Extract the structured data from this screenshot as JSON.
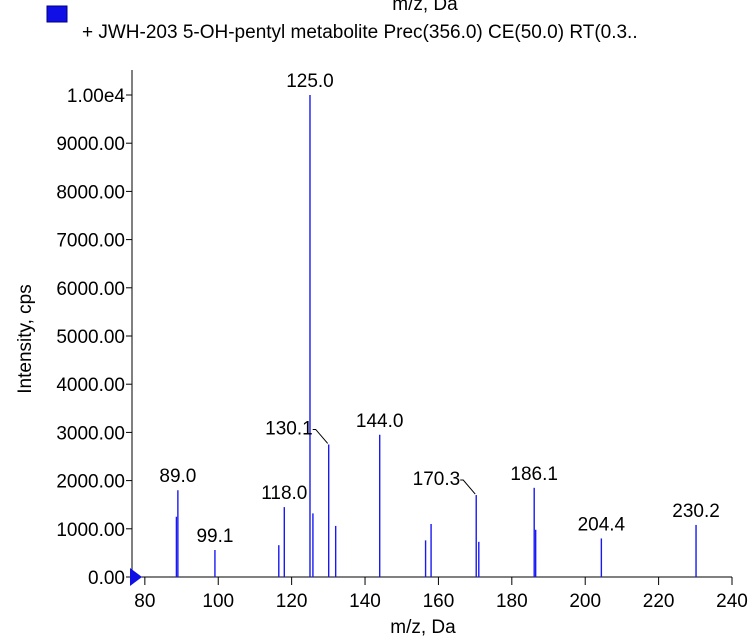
{
  "header": {
    "clipped_text": "m/z, Da"
  },
  "legend": {
    "label": "+ JWH-203 5-OH-pentyl metabolite Prec(356.0) CE(50.0) RT(0.3..",
    "swatch_color": "#1010e6"
  },
  "chart_data": {
    "type": "bar",
    "xlabel": "m/z, Da",
    "ylabel": "Intensity, cps",
    "xlim": [
      76.5,
      240
    ],
    "ylim": [
      0,
      10000
    ],
    "x_ticks": [
      80,
      100,
      120,
      140,
      160,
      180,
      200,
      220,
      240
    ],
    "x_tick_labels": [
      "80",
      "100",
      "120",
      "140",
      "160",
      "180",
      "200",
      "220",
      "240"
    ],
    "y_ticks": [
      0,
      1000,
      2000,
      3000,
      4000,
      5000,
      6000,
      7000,
      8000,
      9000,
      10000
    ],
    "y_tick_labels": [
      "0.00",
      "1000.00",
      "2000.00",
      "3000.00",
      "4000.00",
      "5000.00",
      "6000.00",
      "7000.00",
      "8000.00",
      "9000.00",
      "1.00e4"
    ],
    "series": [
      {
        "color": "#1a1af0",
        "peaks": [
          {
            "x": 88.6,
            "y": 1250
          },
          {
            "x": 89.0,
            "y": 1800
          },
          {
            "x": 99.1,
            "y": 560
          },
          {
            "x": 116.5,
            "y": 660
          },
          {
            "x": 118.0,
            "y": 1450
          },
          {
            "x": 125.0,
            "y": 10000
          },
          {
            "x": 125.8,
            "y": 1320
          },
          {
            "x": 130.1,
            "y": 2750
          },
          {
            "x": 132.0,
            "y": 1060
          },
          {
            "x": 144.0,
            "y": 2950
          },
          {
            "x": 156.5,
            "y": 760
          },
          {
            "x": 158.0,
            "y": 1100
          },
          {
            "x": 170.3,
            "y": 1700
          },
          {
            "x": 171.0,
            "y": 730
          },
          {
            "x": 186.1,
            "y": 1850
          },
          {
            "x": 186.5,
            "y": 980
          },
          {
            "x": 204.4,
            "y": 800
          },
          {
            "x": 230.2,
            "y": 1080
          }
        ]
      }
    ],
    "peak_labels": [
      {
        "text": "89.0",
        "x": 89.0,
        "y": 1800
      },
      {
        "text": "99.1",
        "x": 99.1,
        "y": 560
      },
      {
        "text": "118.0",
        "x": 118.0,
        "y": 1450
      },
      {
        "text": "125.0",
        "x": 125.0,
        "y": 10000
      },
      {
        "text": "130.1",
        "x": 130.1,
        "y": 2750,
        "leader": true
      },
      {
        "text": "144.0",
        "x": 144.0,
        "y": 2950
      },
      {
        "text": "170.3",
        "x": 170.3,
        "y": 1700,
        "leader": true
      },
      {
        "text": "186.1",
        "x": 186.1,
        "y": 1850
      },
      {
        "text": "204.4",
        "x": 204.4,
        "y": 800
      },
      {
        "text": "230.2",
        "x": 230.2,
        "y": 1080
      }
    ],
    "grid": false,
    "legend_position": "top-left"
  }
}
